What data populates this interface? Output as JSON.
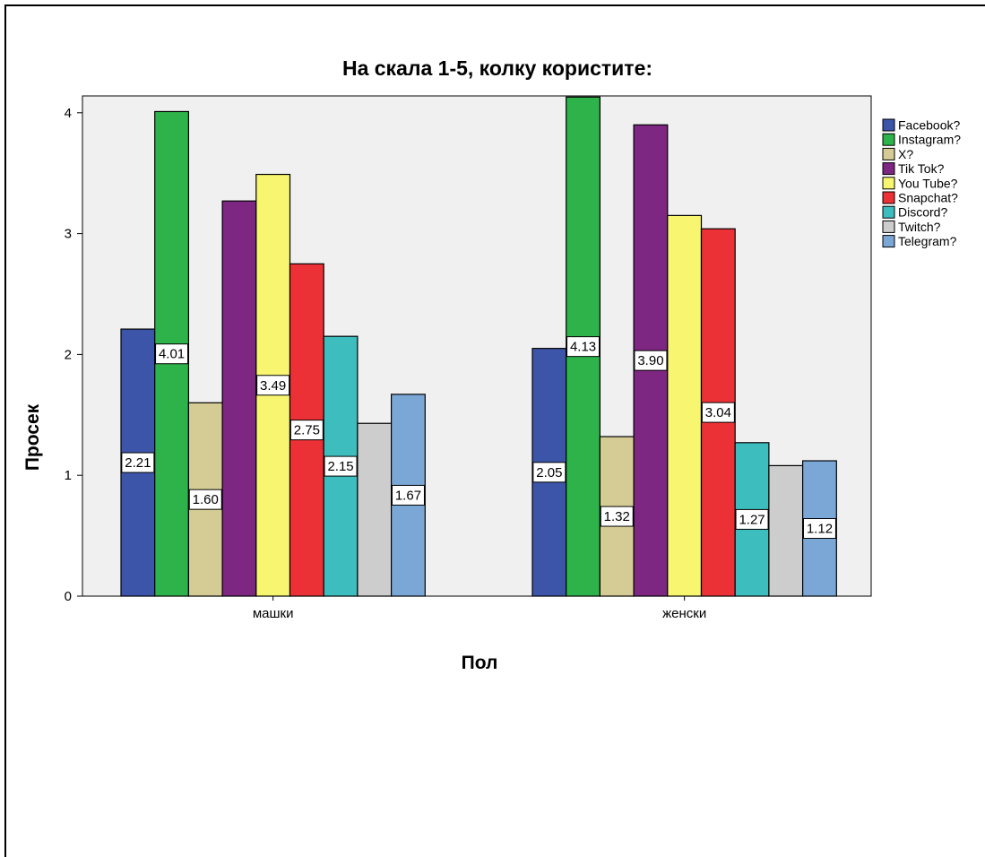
{
  "chart_data": {
    "type": "bar",
    "title": "На скала 1-5, колку користите:",
    "xlabel": "Пол",
    "ylabel": "Просек",
    "categories": [
      "машки",
      "женски"
    ],
    "ylim": [
      0,
      5.5
    ],
    "yticks": [
      0,
      1,
      2,
      3,
      4,
      5
    ],
    "grid": false,
    "legend_position": "right",
    "plot_background": "#f0f0f0",
    "series": [
      {
        "name": "Facebook?",
        "values": [
          2.21,
          2.05
        ],
        "labels": [
          "2.21",
          "2.05"
        ],
        "color": "#3d55a8"
      },
      {
        "name": "Instagram?",
        "values": [
          4.01,
          4.13
        ],
        "labels": [
          "4.01",
          "4.13"
        ],
        "color": "#2db34a"
      },
      {
        "name": "X?",
        "values": [
          1.6,
          1.32
        ],
        "labels": [
          "1.60",
          "1.32"
        ],
        "color": "#d4cc94"
      },
      {
        "name": "Tik Tok?",
        "values": [
          3.27,
          3.9
        ],
        "labels": [
          "",
          "3.90"
        ],
        "color": "#7d2682"
      },
      {
        "name": "You Tube?",
        "values": [
          3.49,
          3.15
        ],
        "labels": [
          "3.49",
          ""
        ],
        "color": "#f8f570"
      },
      {
        "name": "Snapchat?",
        "values": [
          2.75,
          3.04
        ],
        "labels": [
          "2.75",
          "3.04"
        ],
        "color": "#ec3136"
      },
      {
        "name": "Discord?",
        "values": [
          2.15,
          1.27
        ],
        "labels": [
          "2.15",
          "1.27"
        ],
        "color": "#3ebdbe"
      },
      {
        "name": "Twitch?",
        "values": [
          1.43,
          1.08
        ],
        "labels": [
          "",
          ""
        ],
        "color": "#cdcdcd"
      },
      {
        "name": "Telegram?",
        "values": [
          1.67,
          1.12
        ],
        "labels": [
          "1.67",
          "1.12"
        ],
        "color": "#7aa7d6"
      }
    ]
  }
}
